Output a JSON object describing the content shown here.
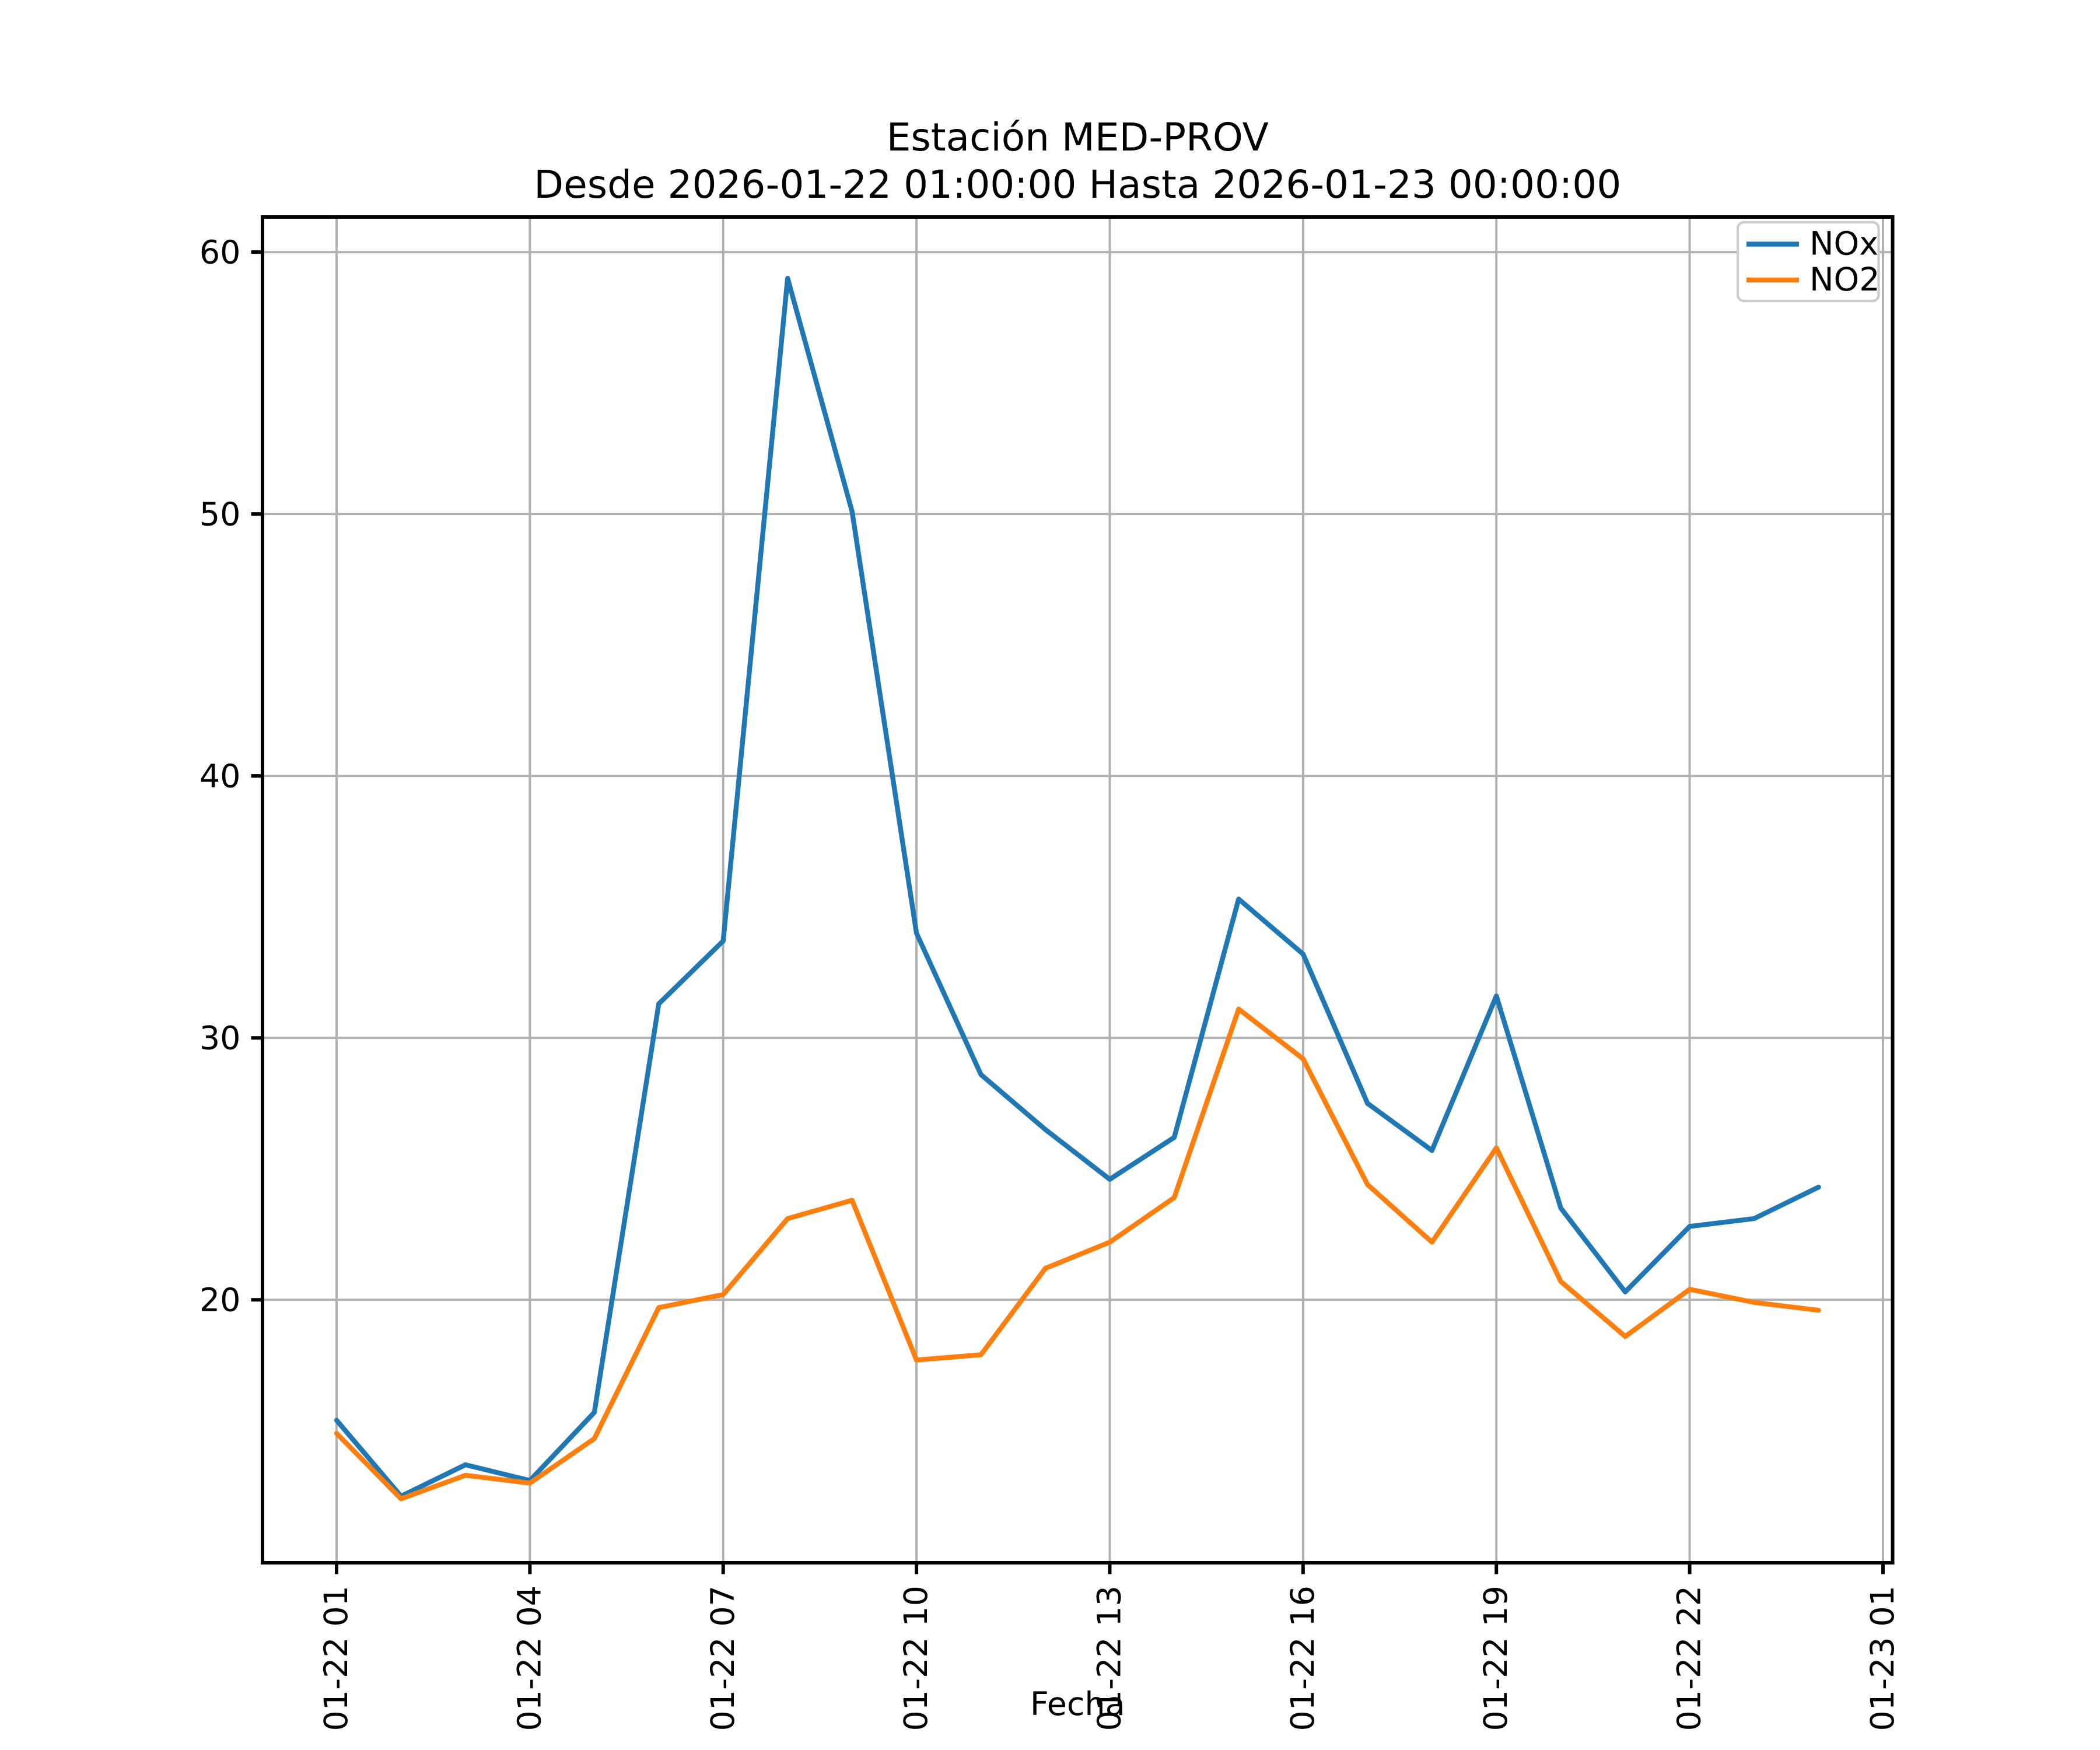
{
  "chart_data": {
    "type": "line",
    "title": "Estación MED-PROV",
    "subtitle": "Desde 2026-01-22 01:00:00 Hasta 2026-01-23 00:00:00",
    "xlabel": "Fecha",
    "ylabel": "",
    "x_start": "2026-01-22 01:00:00",
    "x_end": "2026-01-23 00:00:00",
    "x_hours_offset": [
      0,
      1,
      2,
      3,
      4,
      5,
      6,
      7,
      8,
      9,
      10,
      11,
      12,
      13,
      14,
      15,
      16,
      17,
      18,
      19,
      20,
      21,
      22,
      23
    ],
    "x_tick_positions_hours": [
      0,
      3,
      6,
      9,
      12,
      15,
      18,
      21,
      24
    ],
    "x_tick_labels": [
      "01-22 01",
      "01-22 04",
      "01-22 07",
      "01-22 10",
      "01-22 13",
      "01-22 16",
      "01-22 19",
      "01-22 22",
      "01-23 01"
    ],
    "y_ticks": [
      20,
      30,
      40,
      50,
      60
    ],
    "y_tick_labels": [
      "20",
      "30",
      "40",
      "50",
      "60"
    ],
    "ylim": [
      9.96,
      61.34
    ],
    "xlim_hours": [
      -1.15,
      24.15
    ],
    "grid": true,
    "legend_position": "upper right",
    "series": [
      {
        "name": "NOx",
        "color": "#1f77b4",
        "values": [
          15.4,
          12.5,
          13.7,
          13.1,
          15.7,
          31.3,
          33.7,
          59.0,
          50.1,
          34.0,
          28.6,
          26.5,
          24.6,
          26.2,
          35.3,
          33.2,
          27.5,
          25.7,
          31.6,
          23.5,
          20.3,
          22.8,
          23.1,
          24.3
        ]
      },
      {
        "name": "NO2",
        "color": "#ff7f0e",
        "values": [
          14.9,
          12.4,
          13.3,
          13.0,
          14.7,
          19.7,
          20.2,
          23.1,
          23.8,
          17.7,
          17.9,
          21.2,
          22.2,
          23.9,
          31.1,
          29.2,
          24.4,
          22.2,
          25.8,
          20.7,
          18.6,
          20.4,
          19.9,
          19.6
        ]
      }
    ]
  },
  "style": {
    "background": "#ffffff",
    "grid_color": "#b0b0b0",
    "spine_color": "#000000",
    "tick_color": "#000000",
    "text_color": "#000000",
    "legend_border": "#cccccc",
    "legend_background": "#ffffff"
  }
}
